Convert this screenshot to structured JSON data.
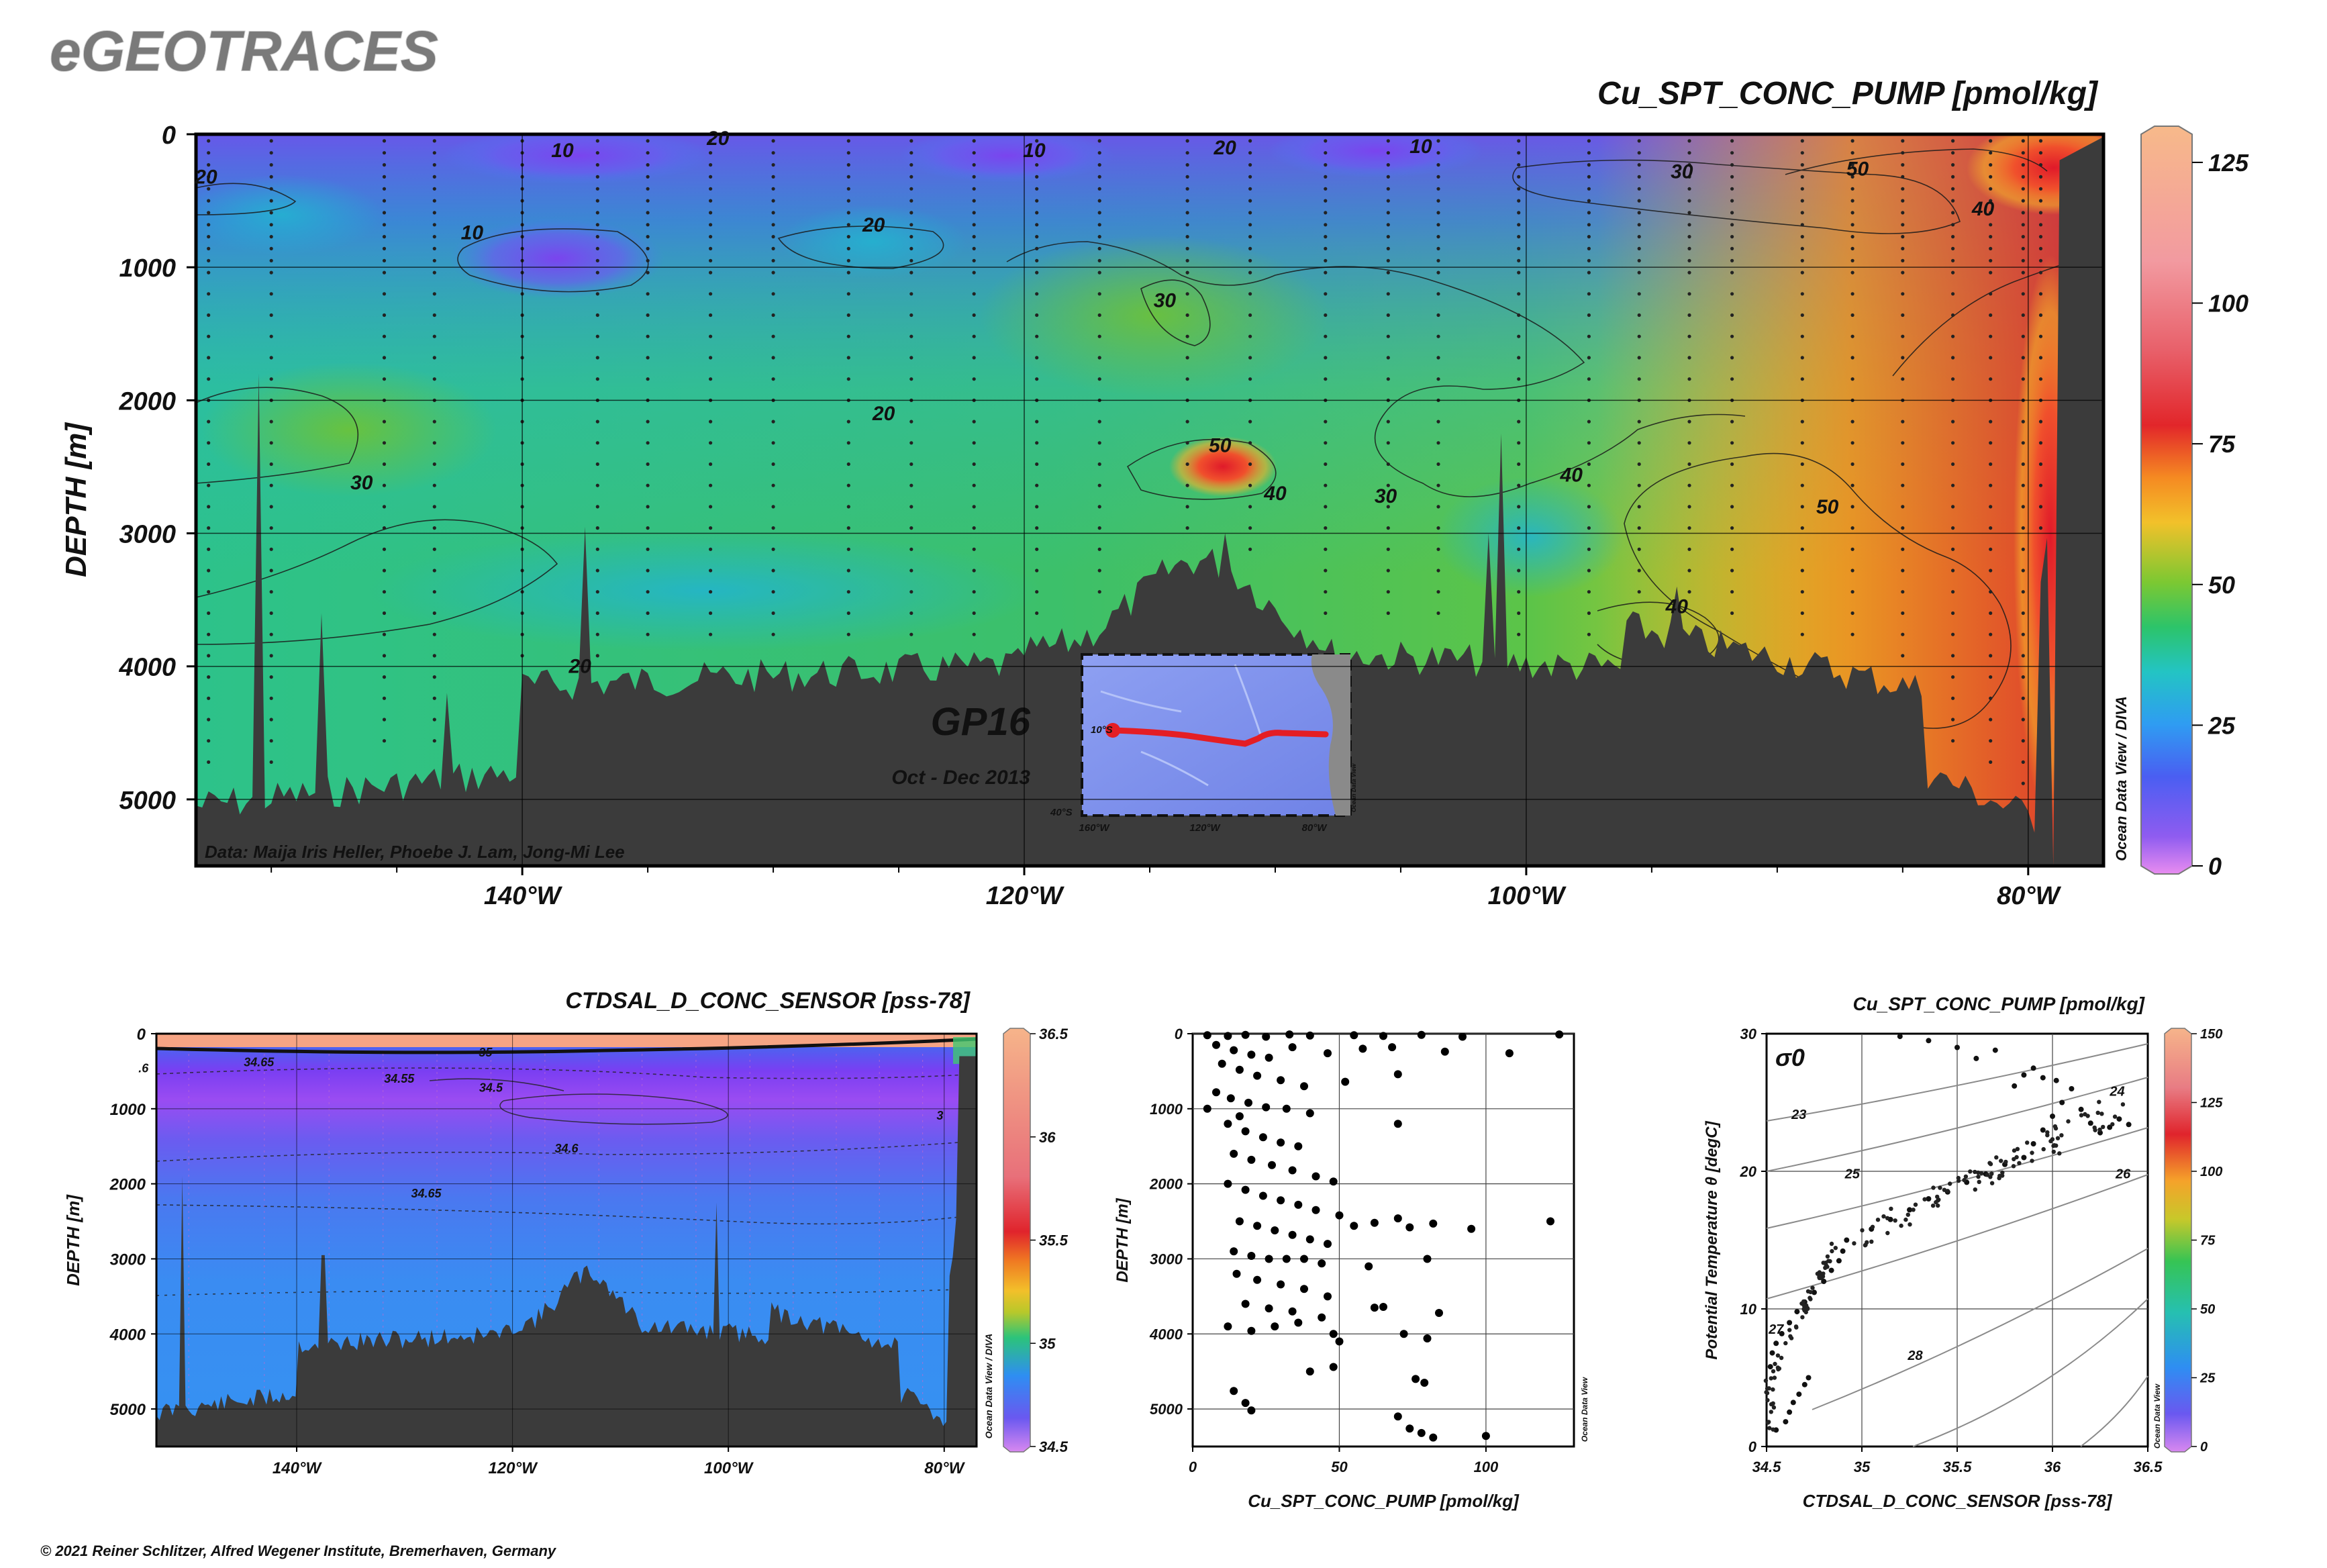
{
  "logo": "eGEOTRACES",
  "copyright": "© 2021 Reiner Schlitzer, Alfred Wegener Institute, Bremerhaven, Germany",
  "main_section": {
    "title": "Cu_SPT_CONC_PUMP [pmol/kg]",
    "ylabel": "DEPTH [m]",
    "y_ticks": [
      "0",
      "1000",
      "2000",
      "3000",
      "4000",
      "5000"
    ],
    "x_ticks": [
      "140°W",
      "120°W",
      "100°W",
      "80°W"
    ],
    "colorbar_ticks": [
      "0",
      "25",
      "50",
      "75",
      "100",
      "125"
    ],
    "credit": "Data: Maija Iris Heller, Phoebe J. Lam, Jong-Mi Lee",
    "side_label": "Ocean Data View / DIVA",
    "cruise": "GP16",
    "dates": "Oct - Dec 2013",
    "contour_labels": [
      {
        "text": "10",
        "x_lon": -138.4,
        "depth": 120
      },
      {
        "text": "20",
        "x_lon": -132.2,
        "depth": 30
      },
      {
        "text": "10",
        "x_lon": -119.6,
        "depth": 120
      },
      {
        "text": "20",
        "x_lon": -112.0,
        "depth": 100
      },
      {
        "text": "10",
        "x_lon": -104.2,
        "depth": 90
      },
      {
        "text": "20",
        "x_lon": -152.6,
        "depth": 320
      },
      {
        "text": "10",
        "x_lon": -142.0,
        "depth": 740
      },
      {
        "text": "20",
        "x_lon": -126.0,
        "depth": 680
      },
      {
        "text": "30",
        "x_lon": -114.4,
        "depth": 1250
      },
      {
        "text": "20",
        "x_lon": -125.6,
        "depth": 2100
      },
      {
        "text": "30",
        "x_lon": -146.4,
        "depth": 2620
      },
      {
        "text": "50",
        "x_lon": -112.2,
        "depth": 2340
      },
      {
        "text": "40",
        "x_lon": -110.0,
        "depth": 2700
      },
      {
        "text": "30",
        "x_lon": -105.6,
        "depth": 2720
      },
      {
        "text": "40",
        "x_lon": -98.2,
        "depth": 2560
      },
      {
        "text": "30",
        "x_lon": -93.8,
        "depth": 280
      },
      {
        "text": "50",
        "x_lon": -86.8,
        "depth": 260
      },
      {
        "text": "40",
        "x_lon": -81.8,
        "depth": 560
      },
      {
        "text": "50",
        "x_lon": -88.0,
        "depth": 2800
      },
      {
        "text": "20",
        "x_lon": -137.7,
        "depth": 4000
      },
      {
        "text": "40",
        "x_lon": -94.0,
        "depth": 3550
      }
    ],
    "inset_map": {
      "lat_ticks": [
        "10°S",
        "40°S"
      ],
      "lon_ticks": [
        "160°W",
        "120°W",
        "80°W"
      ],
      "credit": "Ocean Data View"
    }
  },
  "salinity_section": {
    "title": "CTDSAL_D_CONC_SENSOR [pss-78]",
    "ylabel": "DEPTH [m]",
    "y_ticks": [
      "0",
      "1000",
      "2000",
      "3000",
      "4000",
      "5000"
    ],
    "x_ticks": [
      "140°W",
      "120°W",
      "100°W",
      "80°W"
    ],
    "colorbar_ticks": [
      "34.5",
      "35",
      "35.5",
      "36",
      "36.5"
    ],
    "side_label": "Ocean Data View / DIVA",
    "contour_labels": [
      {
        "text": "34.65",
        "x_lon": -143.5,
        "depth": 380
      },
      {
        "text": "34.55",
        "x_lon": -130.5,
        "depth": 600
      },
      {
        "text": "34.5",
        "x_lon": -122.0,
        "depth": 720
      },
      {
        "text": "34.6",
        "x_lon": -115.0,
        "depth": 1530
      },
      {
        "text": "34.65",
        "x_lon": -128.0,
        "depth": 2130
      },
      {
        "text": "35",
        "x_lon": -122.5,
        "depth": 250
      },
      {
        "text": ".6",
        "x_lon": -154.2,
        "depth": 460
      },
      {
        "text": "3",
        "x_lon": -80.4,
        "depth": 1090
      }
    ]
  },
  "profile_chart": {
    "xlabel": "Cu_SPT_CONC_PUMP [pmol/kg]",
    "ylabel": "DEPTH [m]",
    "x_ticks": [
      "0",
      "50",
      "100"
    ],
    "y_ticks": [
      "0",
      "1000",
      "2000",
      "3000",
      "4000",
      "5000"
    ],
    "side_label": "Ocean Data View"
  },
  "ts_chart": {
    "title": "Cu_SPT_CONC_PUMP [pmol/kg]",
    "xlabel": "CTDSAL_D_CONC_SENSOR [pss-78]",
    "ylabel": "Potential Temperature θ [degC]",
    "x_ticks": [
      "34.5",
      "35",
      "35.5",
      "36",
      "36.5"
    ],
    "y_ticks": [
      "0",
      "10",
      "20",
      "30"
    ],
    "colorbar_ticks": [
      "0",
      "25",
      "50",
      "75",
      "100",
      "125",
      "150"
    ],
    "sigma_label": "σ0",
    "density_labels": [
      "23",
      "24",
      "25",
      "26",
      "27",
      "28"
    ],
    "side_label": "Ocean Data View"
  },
  "chart_data": [
    {
      "type": "heatmap",
      "title": "Cu_SPT_CONC_PUMP [pmol/kg]",
      "xlabel": "",
      "ylabel": "DEPTH [m]",
      "xlim": [
        -153,
        -77
      ],
      "ylim": [
        5500,
        0
      ],
      "colorbar_range": [
        0,
        130
      ],
      "x_tick_values": [
        -140,
        -120,
        -100,
        -80
      ],
      "y_tick_values": [
        0,
        1000,
        2000,
        3000,
        4000,
        5000
      ],
      "hotspots": [
        {
          "lon": -79.5,
          "depth": 2500,
          "value": 75
        },
        {
          "lon": -81.0,
          "depth": 300,
          "value": 78
        },
        {
          "lon": -112.5,
          "depth": 2500,
          "value": 60
        },
        {
          "lon": -137.0,
          "depth": 900,
          "value": 10
        }
      ]
    },
    {
      "type": "heatmap",
      "title": "CTDSAL_D_CONC_SENSOR [pss-78]",
      "xlabel": "",
      "ylabel": "DEPTH [m]",
      "xlim": [
        -153,
        -77
      ],
      "ylim": [
        5500,
        0
      ],
      "colorbar_range": [
        34.5,
        36.5
      ],
      "x_tick_values": [
        -140,
        -120,
        -100,
        -80
      ],
      "y_tick_values": [
        0,
        1000,
        2000,
        3000,
        4000,
        5000
      ]
    },
    {
      "type": "scatter",
      "xlabel": "Cu_SPT_CONC_PUMP [pmol/kg]",
      "ylabel": "DEPTH [m]",
      "xlim": [
        0,
        130
      ],
      "ylim": [
        5500,
        0
      ],
      "points": [
        [
          5,
          20
        ],
        [
          12,
          30
        ],
        [
          18,
          15
        ],
        [
          25,
          40
        ],
        [
          33,
          10
        ],
        [
          40,
          25
        ],
        [
          55,
          20
        ],
        [
          65,
          30
        ],
        [
          78,
          15
        ],
        [
          92,
          40
        ],
        [
          125,
          10
        ],
        [
          8,
          150
        ],
        [
          14,
          220
        ],
        [
          20,
          280
        ],
        [
          26,
          320
        ],
        [
          34,
          180
        ],
        [
          46,
          260
        ],
        [
          58,
          200
        ],
        [
          68,
          180
        ],
        [
          86,
          240
        ],
        [
          108,
          260
        ],
        [
          10,
          400
        ],
        [
          16,
          480
        ],
        [
          22,
          560
        ],
        [
          30,
          620
        ],
        [
          38,
          700
        ],
        [
          52,
          640
        ],
        [
          70,
          540
        ],
        [
          8,
          780
        ],
        [
          13,
          860
        ],
        [
          19,
          920
        ],
        [
          25,
          980
        ],
        [
          32,
          1000
        ],
        [
          40,
          1060
        ],
        [
          5,
          1000
        ],
        [
          16,
          1100
        ],
        [
          12,
          1200
        ],
        [
          18,
          1300
        ],
        [
          24,
          1380
        ],
        [
          30,
          1450
        ],
        [
          36,
          1500
        ],
        [
          70,
          1200
        ],
        [
          14,
          1600
        ],
        [
          20,
          1680
        ],
        [
          27,
          1750
        ],
        [
          34,
          1820
        ],
        [
          42,
          1900
        ],
        [
          48,
          1970
        ],
        [
          12,
          2000
        ],
        [
          18,
          2080
        ],
        [
          24,
          2160
        ],
        [
          30,
          2220
        ],
        [
          36,
          2280
        ],
        [
          42,
          2350
        ],
        [
          50,
          2420
        ],
        [
          16,
          2500
        ],
        [
          22,
          2560
        ],
        [
          28,
          2620
        ],
        [
          34,
          2680
        ],
        [
          40,
          2740
        ],
        [
          46,
          2800
        ],
        [
          55,
          2560
        ],
        [
          62,
          2520
        ],
        [
          70,
          2460
        ],
        [
          74,
          2580
        ],
        [
          82,
          2530
        ],
        [
          95,
          2600
        ],
        [
          122,
          2500
        ],
        [
          14,
          2900
        ],
        [
          20,
          2960
        ],
        [
          26,
          3000
        ],
        [
          32,
          3000
        ],
        [
          38,
          3000
        ],
        [
          44,
          3060
        ],
        [
          60,
          3100
        ],
        [
          80,
          3000
        ],
        [
          15,
          3200
        ],
        [
          22,
          3280
        ],
        [
          30,
          3340
        ],
        [
          38,
          3400
        ],
        [
          46,
          3500
        ],
        [
          18,
          3600
        ],
        [
          26,
          3660
        ],
        [
          34,
          3700
        ],
        [
          44,
          3780
        ],
        [
          62,
          3650
        ],
        [
          65,
          3640
        ],
        [
          84,
          3720
        ],
        [
          12,
          3900
        ],
        [
          20,
          3960
        ],
        [
          28,
          3900
        ],
        [
          36,
          3850
        ],
        [
          48,
          4000
        ],
        [
          50,
          4100
        ],
        [
          72,
          4000
        ],
        [
          80,
          4060
        ],
        [
          40,
          4500
        ],
        [
          48,
          4440
        ],
        [
          76,
          4600
        ],
        [
          79,
          4650
        ],
        [
          14,
          4760
        ],
        [
          18,
          4920
        ],
        [
          20,
          5020
        ],
        [
          70,
          5100
        ],
        [
          74,
          5260
        ],
        [
          78,
          5320
        ],
        [
          82,
          5380
        ],
        [
          100,
          5360
        ]
      ]
    },
    {
      "type": "scatter",
      "title": "Cu_SPT_CONC_PUMP [pmol/kg]",
      "xlabel": "CTDSAL_D_CONC_SENSOR [pss-78]",
      "ylabel": "Potential Temperature θ [degC]",
      "xlim": [
        34.5,
        36.5
      ],
      "ylim": [
        0,
        30
      ],
      "colorbar_range": [
        0,
        150
      ],
      "points": [
        [
          34.55,
          1.2
        ],
        [
          34.6,
          1.8
        ],
        [
          34.62,
          2.5
        ],
        [
          34.64,
          3.2
        ],
        [
          34.67,
          3.8
        ],
        [
          34.7,
          4.5
        ],
        [
          34.72,
          5.0
        ],
        [
          34.52,
          5.8
        ],
        [
          34.53,
          6.8
        ],
        [
          34.55,
          7.5
        ],
        [
          34.58,
          8.2
        ],
        [
          34.62,
          9.0
        ],
        [
          34.66,
          9.8
        ],
        [
          34.7,
          10.5
        ],
        [
          34.75,
          11.2
        ],
        [
          34.8,
          12.0
        ],
        [
          34.84,
          12.8
        ],
        [
          34.88,
          13.5
        ],
        [
          34.9,
          14.2
        ],
        [
          34.92,
          15.0
        ],
        [
          35.05,
          15.8
        ],
        [
          35.15,
          16.5
        ],
        [
          35.25,
          17.2
        ],
        [
          35.35,
          18.0
        ],
        [
          35.45,
          18.5
        ],
        [
          35.55,
          19.2
        ],
        [
          35.65,
          19.8
        ],
        [
          35.75,
          20.5
        ],
        [
          35.85,
          21.0
        ],
        [
          35.9,
          22.0
        ],
        [
          35.95,
          23.0
        ],
        [
          36.0,
          24.0
        ],
        [
          36.05,
          25.0
        ],
        [
          36.1,
          26.0
        ],
        [
          36.15,
          24.5
        ],
        [
          36.2,
          23.5
        ],
        [
          36.25,
          22.8
        ],
        [
          36.3,
          23.2
        ],
        [
          36.35,
          23.8
        ],
        [
          36.4,
          23.4
        ],
        [
          35.85,
          27.0
        ],
        [
          35.9,
          27.5
        ],
        [
          35.95,
          26.8
        ],
        [
          35.5,
          29.0
        ],
        [
          35.35,
          29.5
        ],
        [
          35.2,
          29.8
        ],
        [
          35.6,
          28.2
        ],
        [
          35.7,
          28.8
        ],
        [
          35.8,
          26.2
        ],
        [
          36.02,
          26.6
        ]
      ]
    }
  ]
}
